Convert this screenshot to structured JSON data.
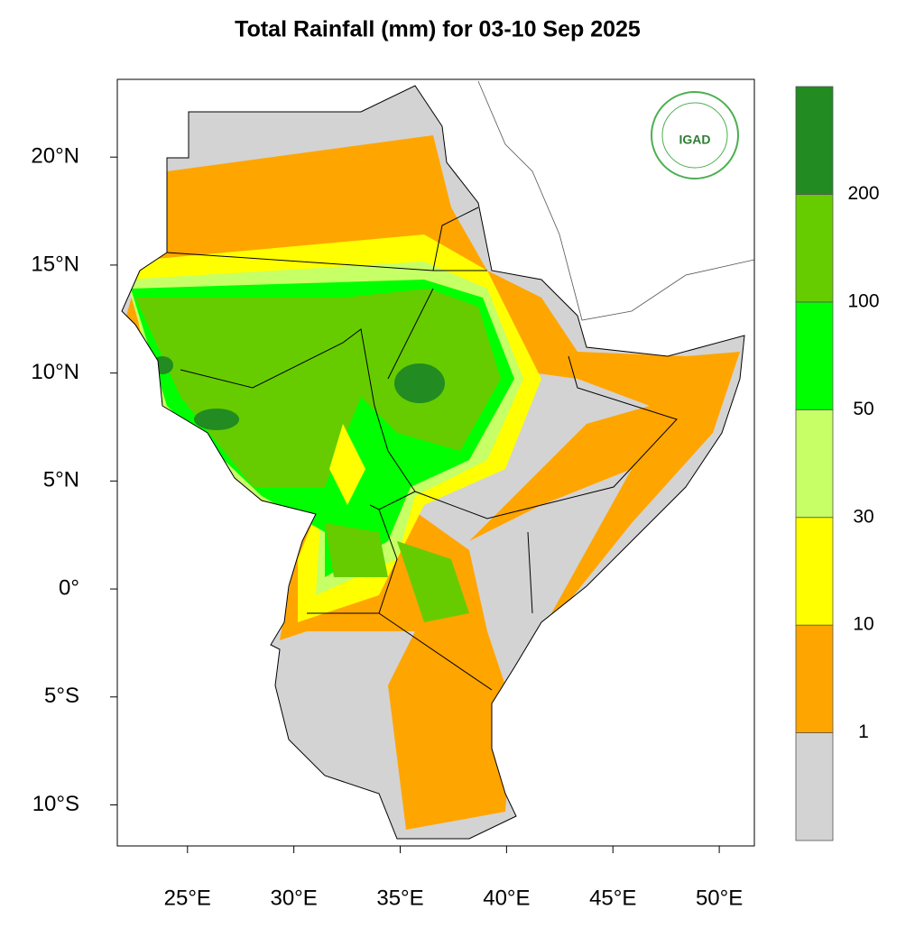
{
  "chart_data": {
    "type": "map",
    "title": "Total Rainfall (mm) for 03-10 Sep 2025",
    "logo_text": "IGAD",
    "xlim": [
      21.7,
      51.65
    ],
    "ylim": [
      -11.9,
      23.6
    ],
    "xticks": [
      {
        "value": 25,
        "label": "25°E"
      },
      {
        "value": 30,
        "label": "30°E"
      },
      {
        "value": 35,
        "label": "35°E"
      },
      {
        "value": 40,
        "label": "40°E"
      },
      {
        "value": 45,
        "label": "45°E"
      },
      {
        "value": 50,
        "label": "50°E"
      }
    ],
    "yticks": [
      {
        "value": 20,
        "label": "20°N"
      },
      {
        "value": 15,
        "label": "15°N"
      },
      {
        "value": 10,
        "label": "10°N"
      },
      {
        "value": 5,
        "label": "5°N"
      },
      {
        "value": 0,
        "label": "0°"
      },
      {
        "value": -5,
        "label": "5°S"
      },
      {
        "value": -10,
        "label": "10°S"
      }
    ],
    "colorbar": {
      "colors": [
        "#d3d3d3",
        "#ffa500",
        "#ffff00",
        "#c6ff66",
        "#00ff00",
        "#66cc00",
        "#228b22"
      ],
      "levels": [
        1,
        10,
        30,
        50,
        100,
        200
      ]
    }
  }
}
